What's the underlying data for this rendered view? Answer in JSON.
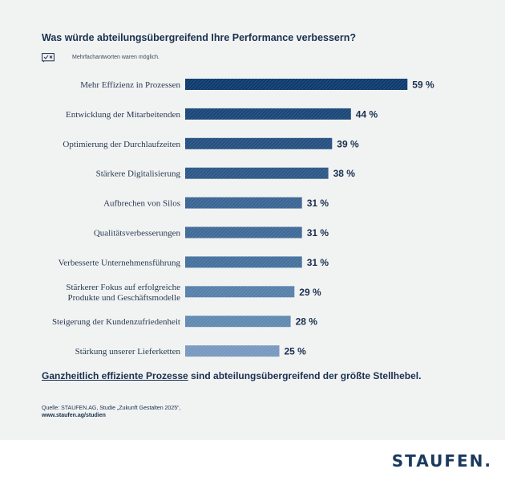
{
  "title": "Was würde abteilungsübergreifend Ihre Performance verbessern?",
  "note": "Mehrfachantworten waren möglich.",
  "note_icon": "checklist-icon",
  "chart_data": {
    "type": "bar",
    "orientation": "horizontal",
    "title": "Was würde abteilungsübergreifend Ihre Performance verbessern?",
    "categories": [
      "Mehr Effizienz in Prozessen",
      "Entwicklung der Mitarbeitenden",
      "Optimierung der Durchlaufzeiten",
      "Stärkere Digitalisierung",
      "Aufbrechen von Silos",
      "Qualitätsverbesserungen",
      "Verbesserte Unternehmensführung",
      "Stärkerer Fokus auf erfolgreiche Produkte und Geschäftsmodelle",
      "Steigerung der Kundenzufriedenheit",
      "Stärkung unserer Lieferketten"
    ],
    "label_lines": [
      [
        "Mehr Effizienz in Prozessen"
      ],
      [
        "Entwicklung der Mitarbeitenden"
      ],
      [
        "Optimierung der Durchlaufzeiten"
      ],
      [
        "Stärkere Digitalisierung"
      ],
      [
        "Aufbrechen von Silos"
      ],
      [
        "Qualitätsverbesserungen"
      ],
      [
        "Verbesserte Unternehmensführung"
      ],
      [
        "Stärkerer Fokus auf erfolgreiche",
        "Produkte und Geschäftsmodelle"
      ],
      [
        "Steigerung der Kundenzufriedenheit"
      ],
      [
        "Stärkung unserer Lieferketten"
      ]
    ],
    "values": [
      59,
      44,
      39,
      38,
      31,
      31,
      31,
      29,
      28,
      25
    ],
    "value_labels": [
      "59 %",
      "44 %",
      "39 %",
      "38 %",
      "31 %",
      "31 %",
      "31 %",
      "29 %",
      "28 %",
      "25 %"
    ],
    "unit": "%",
    "xlim": [
      0,
      100
    ],
    "grid": false,
    "colors": [
      "#0d3a6e",
      "#1a4678",
      "#244f80",
      "#2c5787",
      "#3a6493",
      "#3f6997",
      "#44709c",
      "#5680aa",
      "#6089b1",
      "#7898c0"
    ]
  },
  "conclusion": {
    "highlight": "Ganzheitlich effiziente Prozesse",
    "rest": " sind abteilungsübergreifend der größte Stellhebel."
  },
  "source": {
    "line1": "Quelle: STAUFEN.AG, Studie „Zukunft Gestalten 2025“,",
    "line2": "www.staufen.ag/studien"
  },
  "logo": "STAUFEN."
}
